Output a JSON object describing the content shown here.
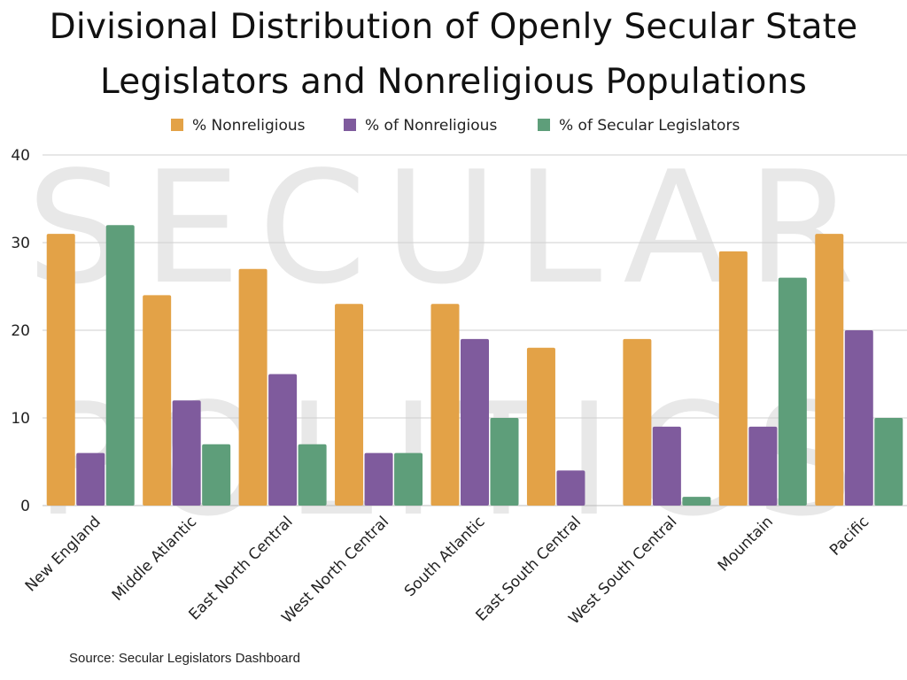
{
  "chart_data": {
    "type": "bar",
    "title_lines": [
      "Divisional Distribution of Openly Secular State",
      "Legislators and Nonreligious Populations"
    ],
    "categories": [
      "New England",
      "Middle Atlantic",
      "East North Central",
      "West North Central",
      "South Atlantic",
      "East South Central",
      "West South Central",
      "Mountain",
      "Pacific"
    ],
    "series": [
      {
        "name": "% Nonreligious",
        "color": "#e3a247",
        "values": [
          31,
          24,
          27,
          23,
          23,
          18,
          19,
          29,
          31
        ]
      },
      {
        "name": "% of Nonreligious",
        "color": "#7f5b9d",
        "values": [
          6,
          12,
          15,
          6,
          19,
          4,
          9,
          9,
          20
        ]
      },
      {
        "name": "% of Secular Legislators",
        "color": "#5e9e7a",
        "values": [
          32,
          7,
          7,
          6,
          10,
          0,
          1,
          26,
          10
        ]
      }
    ],
    "ylim": [
      0,
      40
    ],
    "yticks": [
      0,
      10,
      20,
      30,
      40
    ],
    "xlabel": "",
    "ylabel": "",
    "grid": true,
    "legend_position": "top-center"
  },
  "watermark": {
    "line1": "SECULAR",
    "line2": "POLITICS"
  },
  "source": "Source: Secular Legislators Dashboard"
}
